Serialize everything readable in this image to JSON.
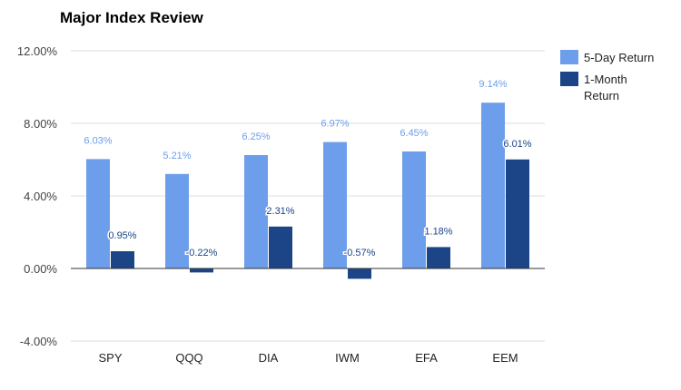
{
  "chart_data": {
    "type": "bar",
    "title": "Major Index Review",
    "xlabel": "",
    "ylabel": "",
    "categories": [
      "SPY",
      "QQQ",
      "DIA",
      "IWM",
      "EFA",
      "EEM"
    ],
    "series": [
      {
        "name": "5-Day Return",
        "color": "#6d9eeb",
        "values": [
          6.03,
          5.21,
          6.25,
          6.97,
          6.45,
          9.14
        ],
        "labels": [
          "6.03%",
          "5.21%",
          "6.25%",
          "6.97%",
          "6.45%",
          "9.14%"
        ]
      },
      {
        "name": "1-Month Return",
        "color": "#1c4587",
        "values": [
          0.95,
          -0.22,
          2.31,
          -0.57,
          1.18,
          6.01
        ],
        "labels": [
          "0.95%",
          "-0.22%",
          "2.31%",
          "-0.57%",
          "1.18%",
          "6.01%"
        ]
      }
    ],
    "ylim": [
      -4,
      12
    ],
    "yticks": [
      -4,
      0,
      4,
      8,
      12
    ],
    "ytick_labels": [
      "-4.00%",
      "0.00%",
      "4.00%",
      "8.00%",
      "12.00%"
    ],
    "grid": true,
    "legend": {
      "position": "right",
      "entries": [
        "5-Day Return",
        "1-Month Return"
      ]
    }
  }
}
